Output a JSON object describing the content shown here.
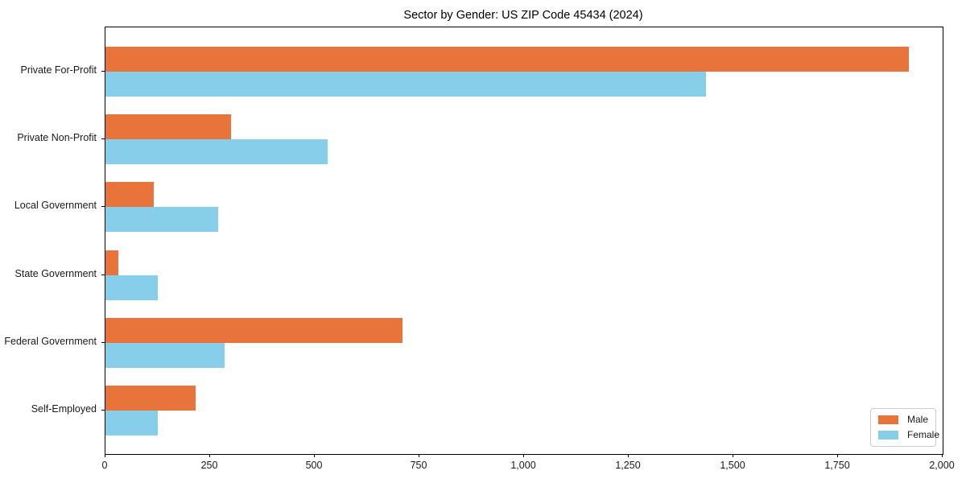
{
  "figure": {
    "background": "#ffffff"
  },
  "chart_data": {
    "type": "bar",
    "orientation": "horizontal",
    "title": "Sector by Gender: US ZIP Code 45434 (2024)",
    "categories": [
      "Private For-Profit",
      "Private Non-Profit",
      "Local Government",
      "State Government",
      "Federal Government",
      "Self-Employed"
    ],
    "series": [
      {
        "name": "Male",
        "color": "#e8743b",
        "values": [
          1920,
          300,
          115,
          30,
          710,
          215
        ]
      },
      {
        "name": "Female",
        "color": "#87ceeb",
        "values": [
          1435,
          530,
          270,
          125,
          285,
          125
        ]
      }
    ],
    "xlim": [
      0,
      2000
    ],
    "xticks": [
      0,
      250,
      500,
      750,
      1000,
      1250,
      1500,
      1750,
      2000
    ],
    "xtick_labels": [
      "0",
      "250",
      "500",
      "750",
      "1,000",
      "1,250",
      "1,500",
      "1,750",
      "2,000"
    ],
    "ylabel": "",
    "xlabel": "",
    "grid": false,
    "legend": {
      "position": "lower-right",
      "entries": [
        "Male",
        "Female"
      ]
    },
    "axis_color": "#000000",
    "text_color": "#1a1a1a"
  }
}
